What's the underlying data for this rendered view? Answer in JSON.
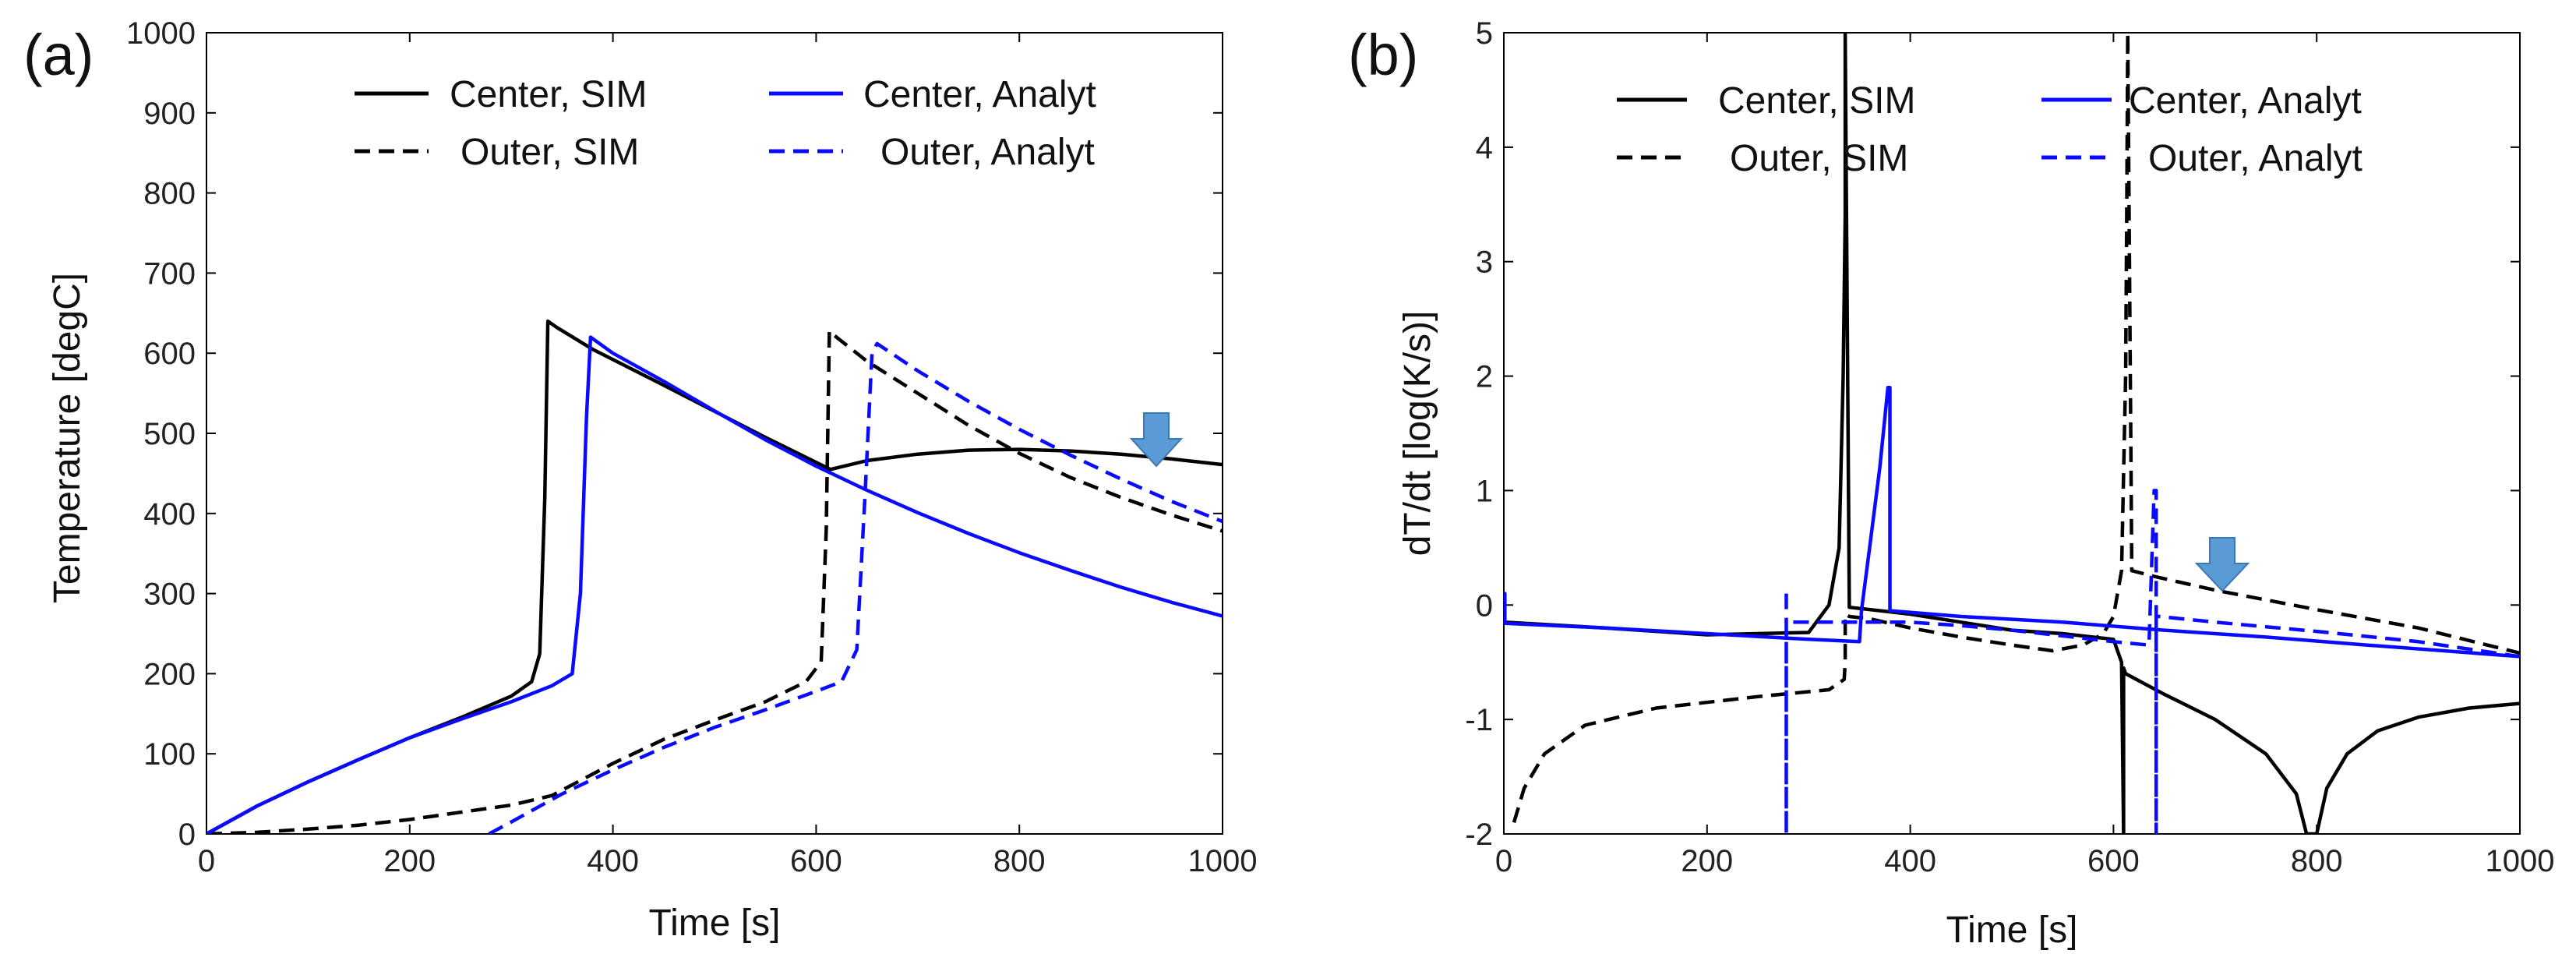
{
  "chart_data": [
    {
      "type": "line",
      "panel_label": "(a)",
      "xlabel": "Time [s]",
      "ylabel": "Temperature [degC]",
      "xlim": [
        0,
        1000
      ],
      "ylim": [
        0,
        1000
      ],
      "xticks": [
        0,
        200,
        400,
        600,
        800,
        1000
      ],
      "yticks": [
        0,
        100,
        200,
        300,
        400,
        500,
        600,
        700,
        800,
        900,
        1000
      ],
      "annotation": "down-arrow-at-t930-T500",
      "legend_position": "top",
      "series": [
        {
          "name": "Center, SIM",
          "color": "#000000",
          "dash": "solid",
          "x": [
            0,
            50,
            100,
            150,
            200,
            250,
            300,
            320,
            328,
            333,
            336,
            345,
            380,
            450,
            550,
            614,
            650,
            700,
            750,
            800,
            850,
            900,
            950,
            1000
          ],
          "y": [
            0,
            35,
            65,
            93,
            120,
            145,
            172,
            190,
            225,
            420,
            640,
            632,
            605,
            560,
            495,
            455,
            466,
            474,
            479,
            480,
            478,
            474,
            468,
            461
          ]
        },
        {
          "name": "Outer, SIM",
          "color": "#000000",
          "dash": "dashed",
          "x": [
            0,
            50,
            100,
            150,
            200,
            250,
            300,
            340,
            400,
            450,
            500,
            550,
            590,
            605,
            610,
            613,
            620,
            650,
            700,
            750,
            800,
            850,
            900,
            950,
            1000
          ],
          "y": [
            0,
            2,
            6,
            11,
            18,
            27,
            36,
            48,
            88,
            118,
            142,
            165,
            190,
            215,
            380,
            628,
            620,
            590,
            550,
            510,
            475,
            445,
            420,
            398,
            378
          ]
        },
        {
          "name": "Center, Analyt",
          "color": "#0a0aff",
          "dash": "solid",
          "x": [
            0,
            50,
            100,
            150,
            200,
            250,
            300,
            340,
            360,
            368,
            374,
            378,
            400,
            450,
            500,
            550,
            600,
            650,
            700,
            750,
            800,
            850,
            900,
            950,
            1000
          ],
          "y": [
            0,
            35,
            65,
            93,
            120,
            143,
            165,
            185,
            200,
            300,
            520,
            620,
            600,
            565,
            528,
            492,
            459,
            429,
            401,
            375,
            351,
            329,
            308,
            289,
            272
          ]
        },
        {
          "name": "Outer, Analyt",
          "color": "#0a0aff",
          "dash": "dashed",
          "x": [
            278,
            300,
            350,
            400,
            450,
            500,
            550,
            600,
            625,
            640,
            648,
            655,
            660,
            700,
            750,
            800,
            850,
            900,
            950,
            1000
          ],
          "y": [
            0,
            15,
            50,
            80,
            108,
            133,
            155,
            178,
            190,
            230,
            420,
            600,
            612,
            578,
            540,
            505,
            473,
            443,
            415,
            390
          ]
        }
      ]
    },
    {
      "type": "line",
      "panel_label": "(b)",
      "xlabel": "Time [s]",
      "ylabel": "dT/dt [log(K/s)]",
      "xlim": [
        0,
        1000
      ],
      "ylim": [
        -2,
        5
      ],
      "xticks": [
        0,
        200,
        400,
        600,
        800,
        1000
      ],
      "yticks": [
        -2,
        -1,
        0,
        1,
        2,
        3,
        4,
        5
      ],
      "annotation": "down-arrow-at-t710-y0.3",
      "legend_position": "top",
      "series": [
        {
          "name": "Center, SIM",
          "color": "#000000",
          "dash": "solid",
          "x": [
            0,
            100,
            200,
            300,
            320,
            330,
            334,
            336,
            336,
            340,
            400,
            450,
            500,
            550,
            600,
            608,
            610,
            610,
            612,
            650,
            700,
            750,
            780,
            790,
            795,
            800,
            810,
            830,
            860,
            900,
            950,
            1000
          ],
          "y": [
            -0.15,
            -0.2,
            -0.26,
            -0.24,
            0.0,
            0.5,
            2.0,
            3.4,
            5.0,
            -0.02,
            -0.08,
            -0.15,
            -0.22,
            -0.25,
            -0.3,
            -0.5,
            -2.0,
            -0.55,
            -0.6,
            -0.78,
            -1.0,
            -1.3,
            -1.65,
            -2.0,
            -2.0,
            -2.0,
            -1.6,
            -1.3,
            -1.1,
            -0.98,
            -0.9,
            -0.86
          ]
        },
        {
          "name": "Outer, SIM",
          "color": "#000000",
          "dash": "dashed",
          "x": [
            10,
            20,
            40,
            80,
            150,
            250,
            320,
            335,
            336,
            336,
            340,
            360,
            400,
            450,
            500,
            540,
            570,
            590,
            600,
            608,
            612,
            613,
            614,
            618,
            640,
            700,
            800,
            900,
            1000
          ],
          "y": [
            -1.9,
            -1.6,
            -1.3,
            -1.05,
            -0.9,
            -0.8,
            -0.74,
            -0.65,
            -0.5,
            -0.08,
            -0.1,
            -0.12,
            -0.2,
            -0.28,
            -0.35,
            -0.4,
            -0.35,
            -0.25,
            -0.1,
            0.3,
            2.0,
            3.4,
            5.0,
            0.3,
            0.25,
            0.13,
            -0.04,
            -0.2,
            -0.42
          ]
        },
        {
          "name": "Center, Analyt",
          "color": "#0a0aff",
          "dash": "solid",
          "x": [
            0,
            1,
            1,
            100,
            200,
            300,
            350,
            352,
            360,
            370,
            378,
            380,
            380,
            450,
            550,
            650,
            750,
            850,
            1000
          ],
          "y": [
            0.1,
            0.1,
            -0.16,
            -0.2,
            -0.25,
            -0.3,
            -0.32,
            -0.05,
            0.5,
            1.2,
            1.9,
            1.9,
            -0.05,
            -0.1,
            -0.15,
            -0.22,
            -0.28,
            -0.35,
            -0.45
          ]
        },
        {
          "name": "Outer, Analyt",
          "color": "#0a0aff",
          "dash": "dashed",
          "x": [
            278,
            278,
            278,
            290,
            350,
            400,
            450,
            500,
            550,
            600,
            635,
            640,
            642,
            642,
            642,
            645,
            700,
            800,
            900,
            1000
          ],
          "y": [
            0.1,
            -2.0,
            -0.15,
            -0.15,
            -0.15,
            -0.15,
            -0.18,
            -0.22,
            -0.27,
            -0.32,
            -0.35,
            1.0,
            1.0,
            -2.0,
            -0.1,
            -0.1,
            -0.15,
            -0.23,
            -0.32,
            -0.45
          ]
        }
      ]
    }
  ]
}
